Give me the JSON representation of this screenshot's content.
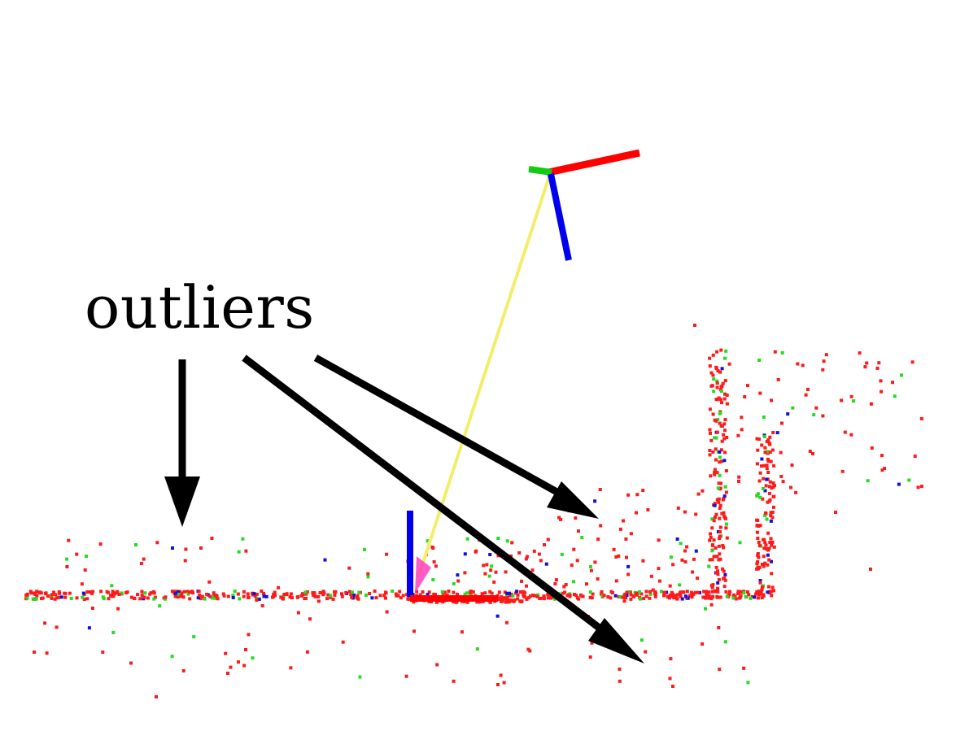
{
  "annotation": {
    "label": "outliers"
  },
  "colors": {
    "background": "#ffffff",
    "arrow": "#000000",
    "axis_x": "#ff0000",
    "axis_y": "#00cc00",
    "axis_z": "#0000ee",
    "trajectory": "#f5f07a",
    "point_red": "#ff1a1a",
    "point_green": "#22dd22",
    "point_blue": "#1010dd",
    "marker": "#ff3fbf"
  }
}
